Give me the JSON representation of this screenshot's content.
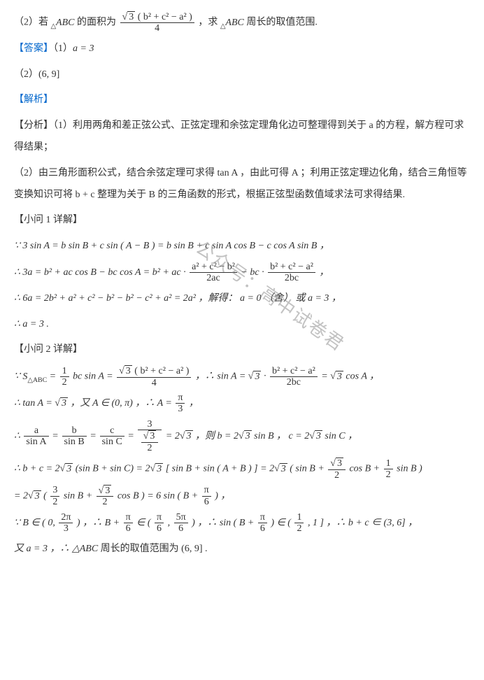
{
  "problem": {
    "part2_prefix": "（2）若",
    "part2_tri": "ABC",
    "part2_mid": " 的面积为 ",
    "part2_frac_num_sqrt": "3",
    "part2_frac_num_paren": "b² + c² − a²",
    "part2_frac_den": "4",
    "part2_suffix": "，求",
    "part2_end": " 周长的取值范围."
  },
  "answer": {
    "label": "【答案】",
    "p1": "（1）",
    "p1_val": "a = 3",
    "p2": "（2）",
    "p2_val": "(6, 9]"
  },
  "analysis": {
    "label": "【解析】",
    "fenxi_label": "【分析】",
    "fenxi_1": "（1）利用两角和差正弦公式、正弦定理和余弦定理角化边可整理得到关于 a 的方程，解方程可求得结果；",
    "fenxi_2": "（2）由三角形面积公式，结合余弦定理可求得 tan A ，由此可得 A ；利用正弦定理边化角，结合三角恒等变换知识可将 b + c 整理为关于 B 的三角函数的形式，根据正弦型函数值域求法可求得结果."
  },
  "sol1": {
    "label": "【小问 1 详解】",
    "line1_lhs": "∵ 3 sin A = b sin B + c sin ( A − B ) = b sin B + c sin A cos B − c cos A sin B ，",
    "line2_pre": "∴ 3a = b² + ac cos B − bc cos A = b² + ac · ",
    "line2_f1_num": "a² + c² − b²",
    "line2_f1_den": "2ac",
    "line2_mid": " − bc · ",
    "line2_f2_num": "b² + c² − a²",
    "line2_f2_den": "2bc",
    "line2_end": " ，",
    "line3": "∴ 6a = 2b² + a² + c² − b² − b² − c² + a² = 2a² ，解得： a = 0 （舍） 或 a = 3 ，",
    "line4": "∴ a = 3 ."
  },
  "sol2": {
    "label": "【小问 2 详解】",
    "s_line_pre": "∵ ",
    "s_sub": "S",
    "s_sub_tri": "△ABC",
    "s_eq": " = ",
    "s_f1_num": "1",
    "s_f1_den": "2",
    "s_f1_after": " bc sin A = ",
    "s_f2_num_sqrt": "3",
    "s_f2_num_paren": "( b² + c² − a² )",
    "s_f2_den": "4",
    "s_mid": " ，∴ sin A = ",
    "s_sqrt3": "3",
    "s_dot": " · ",
    "s_f3_num": "b² + c² − a²",
    "s_f3_den": "2bc",
    "s_eq2": " = ",
    "s_cos": " cos A ，",
    "tan_line_pre": "∴ tan A = ",
    "tan_mid": " ，又 A ∈ (0, π) ，∴ A = ",
    "tan_f_num": "π",
    "tan_f_den": "3",
    "tan_end": " ，",
    "ratio_pre": "∴ ",
    "ratio_f1_num": "a",
    "ratio_f1_den": "sin A",
    "ratio_f2_num": "b",
    "ratio_f2_den": "sin B",
    "ratio_f3_num": "c",
    "ratio_f3_den": "sin C",
    "ratio_f4_num": "3",
    "ratio_f4_den_num": "3",
    "ratio_f4_den_den": "2",
    "ratio_eq": " = 2",
    "ratio_mid": " ，则 b = 2",
    "ratio_sinB": " sin B ， c = 2",
    "ratio_sinC": " sin C ，",
    "bc_pre": "∴ b + c = 2",
    "bc_p1": " (sin B + sin C) = 2",
    "bc_p2_open": " [ sin B + sin ( A + B ) ] = 2",
    "bc_p3_open": " ( sin B + ",
    "bc_f1_num_sqrt": "3",
    "bc_f1_den": "2",
    "bc_p3_mid": " cos B + ",
    "bc_f2_num": "1",
    "bc_f2_den": "2",
    "bc_p3_end": " sin B )",
    "bc2_pre": "= 2",
    "bc2_open": " ( ",
    "bc2_f1_num": "3",
    "bc2_f1_den": "2",
    "bc2_mid1": " sin B + ",
    "bc2_f2_num_sqrt": "3",
    "bc2_f2_den": "2",
    "bc2_mid2": " cos B ) = 6 sin ( B + ",
    "bc2_f3_num": "π",
    "bc2_f3_den": "6",
    "bc2_end": " ) ，",
    "range_pre": "∵ B ∈ ( 0, ",
    "range_f1_num": "2π",
    "range_f1_den": "3",
    "range_mid1": " ) ，∴ B + ",
    "range_f2_num": "π",
    "range_f2_den": "6",
    "range_mid2": " ∈ ( ",
    "range_f3_num": "π",
    "range_f3_den": "6",
    "range_comma": " , ",
    "range_f4_num": "5π",
    "range_f4_den": "6",
    "range_mid3": " ) ，∴ sin ( B + ",
    "range_mid4": " ) ∈ ( ",
    "range_f5_num": "1",
    "range_f5_den": "2",
    "range_mid5": " , 1 ] ，∴ b + c ∈ (3, 6] ，",
    "final_pre": "又 a = 3 ，∴",
    "final_tri": "△ABC",
    "final_end": " 周长的取值范围为 (6, 9] ."
  },
  "watermark": "公众号：高中试卷君",
  "colors": {
    "blue": "#0066cc",
    "text": "#333333",
    "watermark": "rgba(120,120,120,0.45)"
  }
}
